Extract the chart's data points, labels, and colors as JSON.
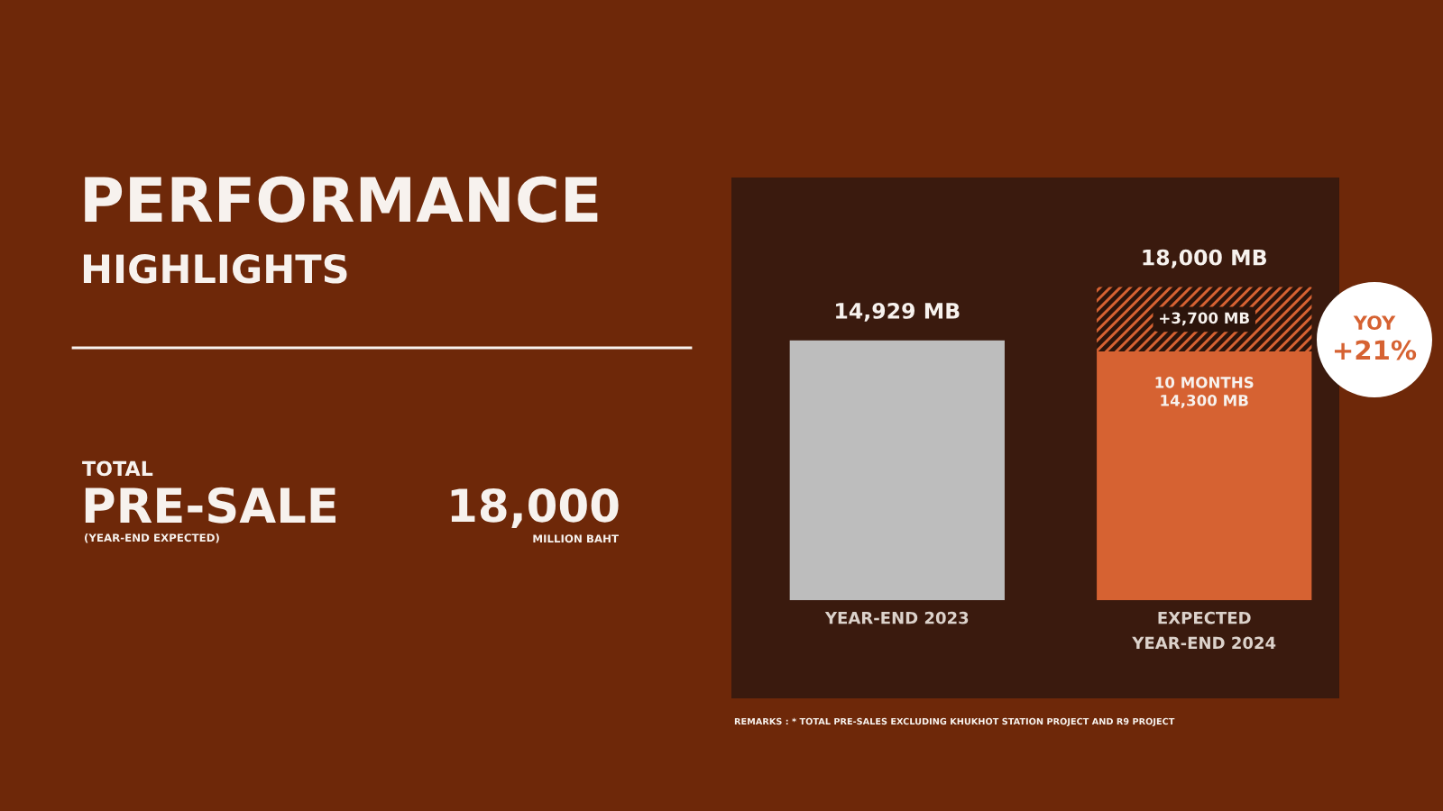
{
  "chart_data": {
    "type": "bar",
    "title": "PERFORMANCE",
    "subtitle": "HIGHLIGHTS",
    "categories": [
      "YEAR-END 2023",
      "EXPECTED\nYEAR-END 2024"
    ],
    "stacked": true,
    "series": [
      {
        "colors": [
          "#bdbdbd",
          "#d66232"
        ],
        "values": [
          14929,
          14300
        ],
        "value_labels": [
          null,
          "10 MONTHS\n14,300 MB"
        ]
      },
      {
        "color": "#d66232",
        "values": [
          null,
          3700
        ],
        "value_labels": [
          null,
          "+3,700 MB"
        ]
      }
    ],
    "totals": [
      "14,929 MB",
      "18,000 MB"
    ],
    "tick_labels": "x",
    "annotations": [
      "TOTAL",
      "PRE-SALE",
      "(YEAR-END EXPECTED)",
      "18,000",
      "MILLION BAHT",
      "YOY",
      "+21%",
      "REMARKS : * TOTAL PRE-SALES EXCLUDING KHUKHOT STATION PROJECT AND R9 PROJECT"
    ]
  }
}
